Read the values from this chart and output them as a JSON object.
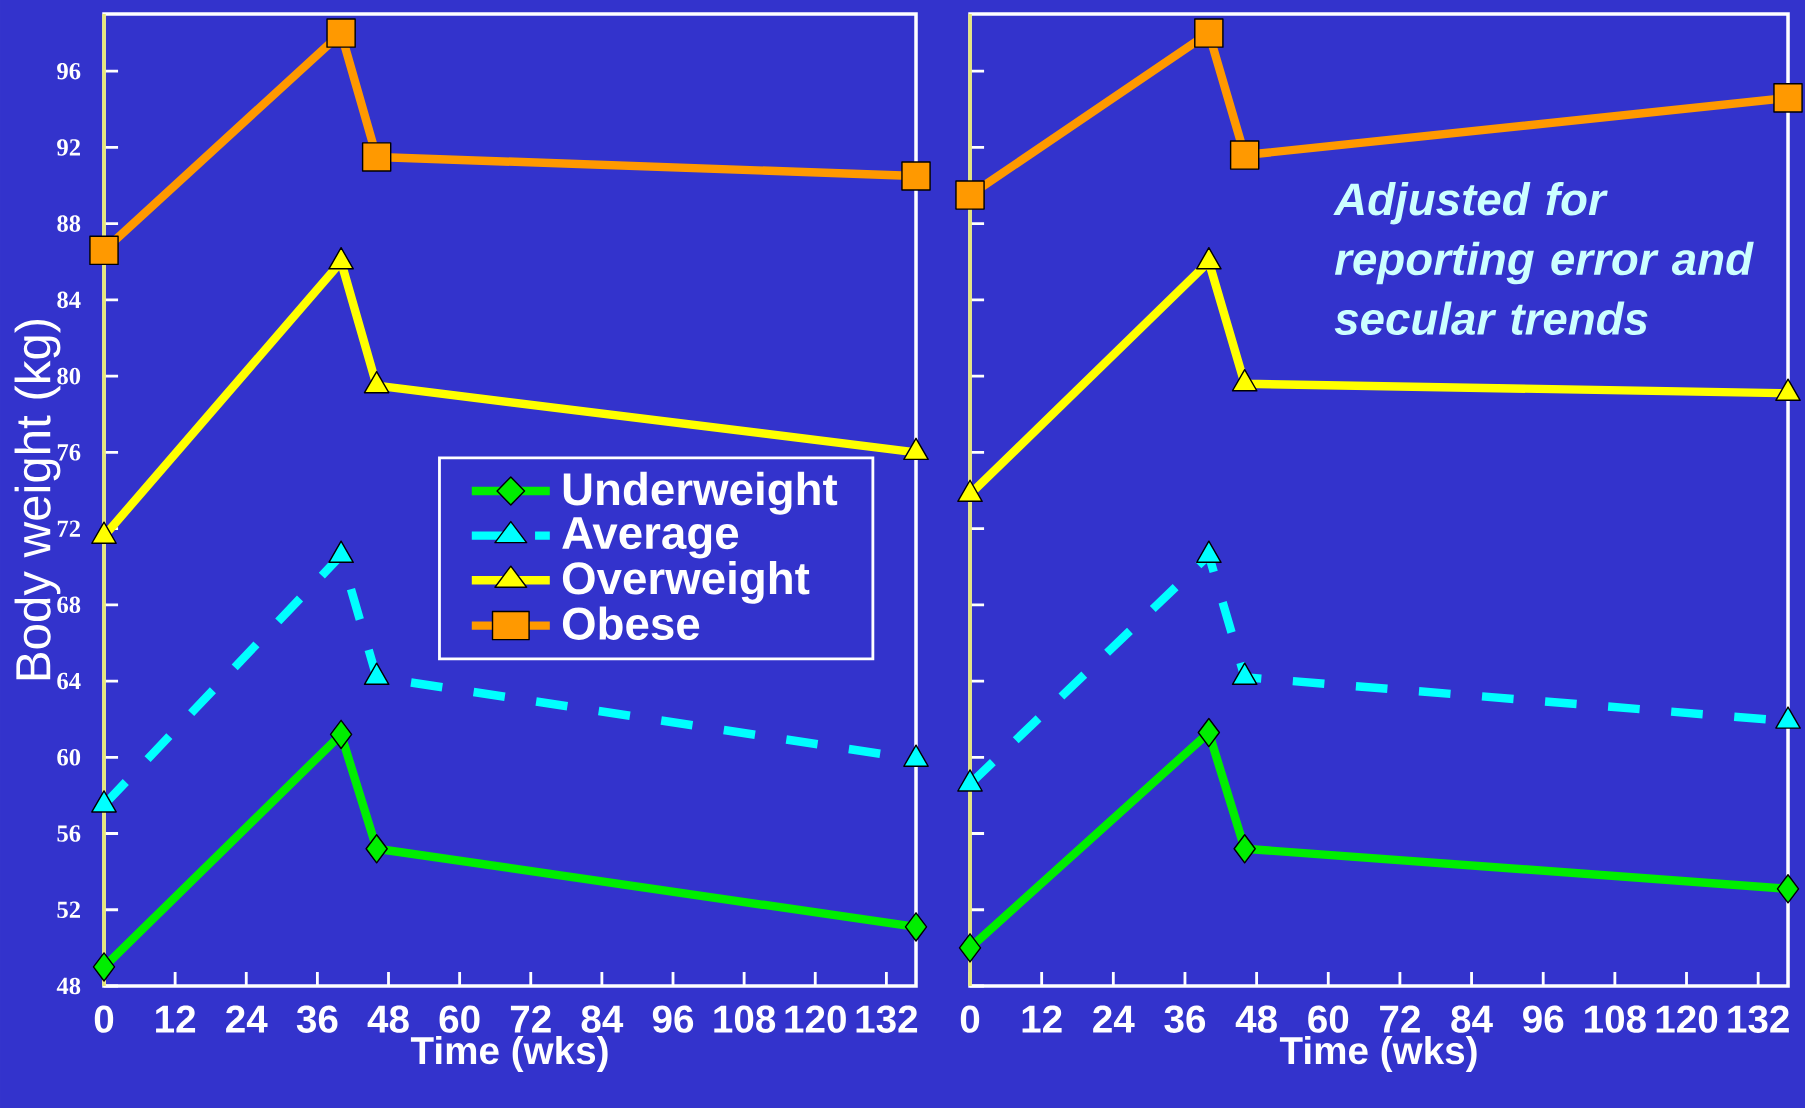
{
  "chart_data": [
    {
      "type": "line",
      "xlabel": "Time (wks)",
      "ylabel": "Body weight (kg)",
      "x": [
        0,
        40,
        46,
        137
      ],
      "xlim": [
        0,
        137
      ],
      "ylim": [
        48,
        99
      ],
      "xticks": [
        0,
        12,
        24,
        36,
        48,
        60,
        72,
        84,
        96,
        108,
        120,
        132
      ],
      "yticks": [
        48,
        52,
        56,
        60,
        64,
        68,
        72,
        76,
        80,
        84,
        88,
        92,
        96
      ],
      "grid": false,
      "legend": "center",
      "series": [
        {
          "name": "Underweight",
          "color": "#00ee00",
          "marker": "diamond",
          "line_style": "solid",
          "values": [
            49.0,
            61.2,
            55.2,
            51.1
          ]
        },
        {
          "name": "Average",
          "color": "#00ffff",
          "marker": "triangle",
          "line_style": "dashed",
          "values": [
            57.5,
            70.6,
            64.2,
            59.9
          ]
        },
        {
          "name": "Overweight",
          "color": "#ffff00",
          "marker": "triangle",
          "line_style": "solid",
          "values": [
            71.6,
            86.0,
            79.5,
            76.0
          ]
        },
        {
          "name": "Obese",
          "color": "#ff9900",
          "marker": "square",
          "line_style": "solid",
          "values": [
            86.6,
            98.0,
            91.5,
            90.5
          ]
        }
      ]
    },
    {
      "type": "line",
      "xlabel": "Time (wks)",
      "x": [
        0,
        40,
        46,
        137
      ],
      "xlim": [
        0,
        137
      ],
      "ylim": [
        48,
        99
      ],
      "xticks": [
        0,
        12,
        24,
        36,
        48,
        60,
        72,
        84,
        96,
        108,
        120,
        132
      ],
      "yticks": [
        48,
        52,
        56,
        60,
        64,
        68,
        72,
        76,
        80,
        84,
        88,
        92,
        96
      ],
      "tick_labels": "x",
      "grid": false,
      "annotations": [
        "Adjusted for reporting error and secular trends"
      ],
      "series": [
        {
          "color": "#00ee00",
          "marker": "diamond",
          "line_style": "solid",
          "values": [
            50.0,
            61.3,
            55.2,
            53.1
          ]
        },
        {
          "color": "#00ffff",
          "marker": "triangle",
          "line_style": "dashed",
          "values": [
            58.6,
            70.6,
            64.2,
            61.9
          ]
        },
        {
          "color": "#ffff00",
          "marker": "triangle",
          "line_style": "solid",
          "values": [
            73.8,
            86.0,
            79.6,
            79.1
          ]
        },
        {
          "color": "#ff9900",
          "marker": "square",
          "line_style": "solid",
          "values": [
            89.5,
            98.0,
            91.6,
            94.6
          ]
        }
      ]
    }
  ]
}
